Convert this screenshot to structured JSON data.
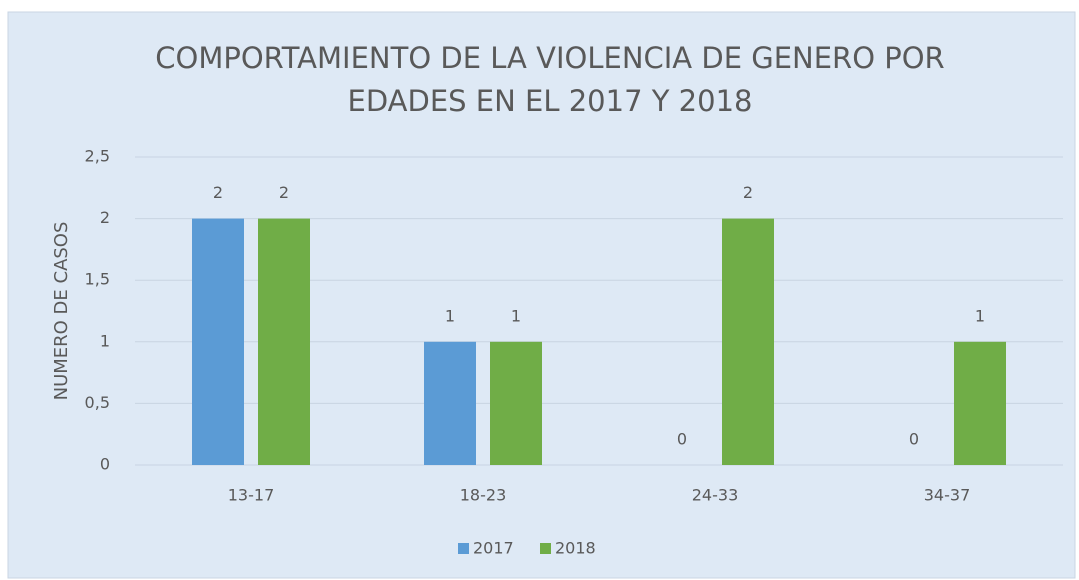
{
  "chart_data": {
    "type": "bar",
    "title": [
      "COMPORTAMIENTO DE LA VIOLENCIA DE GENERO POR",
      "EDADES EN EL 2017 Y 2018"
    ],
    "y_label": "NUMERO DE CASOS",
    "categories": [
      "13-17",
      "18-23",
      "24-33",
      "34-37"
    ],
    "series": [
      {
        "name": "2017",
        "color": "#5b9bd5",
        "values": [
          2,
          1,
          0,
          0
        ]
      },
      {
        "name": "2018",
        "color": "#70ad47",
        "values": [
          2,
          1,
          2,
          1
        ]
      }
    ],
    "ylim": [
      0,
      2.5
    ],
    "yticks": [
      0,
      {
        "value": 0.5,
        "label": "0,5"
      },
      1,
      {
        "value": 1.5,
        "label": "1,5"
      },
      2,
      {
        "value": 2.5,
        "label": "2,5"
      }
    ],
    "grid": true,
    "legend": "bottom"
  }
}
